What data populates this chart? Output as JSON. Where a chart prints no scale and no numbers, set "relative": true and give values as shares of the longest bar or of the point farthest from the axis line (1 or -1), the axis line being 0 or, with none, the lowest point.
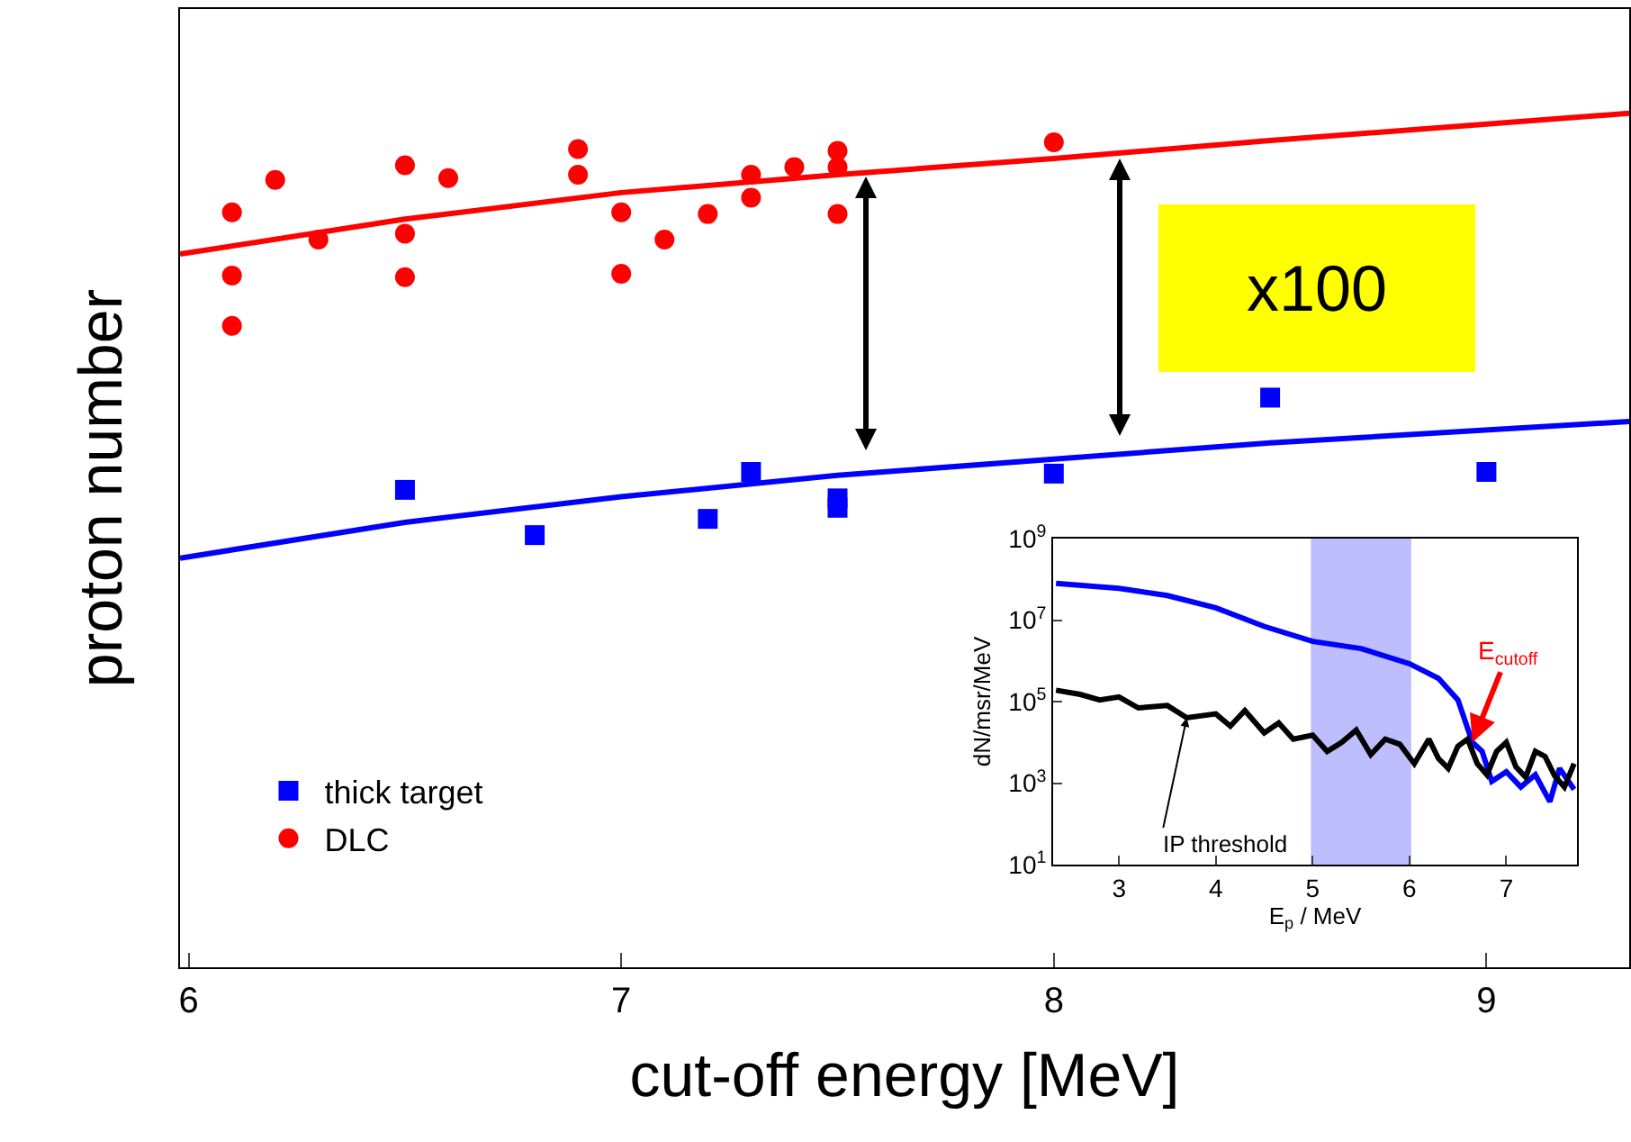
{
  "chart_data": [
    {
      "type": "scatter",
      "xlabel": "cut-off energy [MeV]",
      "ylabel": "proton number",
      "relative": true,
      "xlim": [
        5.98,
        9.33
      ],
      "xticks": [
        6,
        7,
        8,
        9
      ],
      "tick_labels": "x",
      "grid": false,
      "legend": "bottom left",
      "annotations": [
        "x100"
      ],
      "series": [
        {
          "name": "thick target",
          "color": "#0000ff",
          "marker": "square",
          "x": [
            6.5,
            6.8,
            7.2,
            7.3,
            7.5,
            7.5,
            8.0,
            8.5,
            9.0
          ],
          "values": [
            0.559,
            0.506,
            0.525,
            0.58,
            0.549,
            0.538,
            0.578,
            0.667,
            0.58
          ]
        },
        {
          "name": "DLC",
          "color": "#ff0000",
          "marker": "circle",
          "x": [
            6.1,
            6.1,
            6.1,
            6.2,
            6.3,
            6.5,
            6.5,
            6.5,
            6.6,
            6.9,
            6.9,
            7.0,
            7.0,
            7.1,
            7.2,
            7.3,
            7.3,
            7.4,
            7.5,
            7.5,
            7.5,
            8.0
          ],
          "values": [
            0.884,
            0.81,
            0.751,
            0.922,
            0.852,
            0.939,
            0.859,
            0.808,
            0.924,
            0.958,
            0.928,
            0.884,
            0.812,
            0.852,
            0.882,
            0.928,
            0.901,
            0.937,
            0.956,
            0.937,
            0.882,
            0.966
          ]
        },
        {
          "type": "line",
          "color": "#0000ff",
          "marker": "none",
          "x": [
            5.98,
            6.5,
            7.0,
            7.5,
            8.0,
            8.5,
            9.33
          ],
          "values": [
            0.479,
            0.521,
            0.551,
            0.576,
            0.595,
            0.614,
            0.639
          ]
        },
        {
          "type": "line",
          "color": "#ff0000",
          "marker": "none",
          "x": [
            5.98,
            6.5,
            7.0,
            7.5,
            8.0,
            8.5,
            9.33
          ],
          "values": [
            0.835,
            0.876,
            0.907,
            0.928,
            0.947,
            0.968,
            1
          ]
        }
      ]
    },
    {
      "type": "line",
      "xlabel": "E$_{p}$ / MeV",
      "ylabel": "dN/msr/MeV",
      "log": "y",
      "xlim": [
        2.32,
        7.73
      ],
      "xticks": [
        3,
        4,
        5,
        6,
        7
      ],
      "ylim": [
        10,
        1000000000
      ],
      "yticks": [
        {
          "value": 10,
          "label": "10$^{1}$"
        },
        {
          "value": 1000,
          "label": "10$^{3}$"
        },
        {
          "value": 100000,
          "label": "10$^{5}$"
        },
        {
          "value": 10000000,
          "label": "10$^{7}$"
        },
        {
          "value": 1000000000,
          "label": "10$^{9}$"
        }
      ],
      "grid": false,
      "legend": false,
      "marker": "none",
      "annotations": [
        {
          "text": "E$_{cutoff}$",
          "x": 6.65,
          "y": 10000
        },
        {
          "text": "IP threshold",
          "x": 3.7,
          "y": 40000
        }
      ],
      "bands": [
        {
          "axis": "x",
          "from": 5,
          "to": 6,
          "color": "#0000ff"
        }
      ],
      "series": [
        {
          "color": "#0000ff",
          "x": [
            2.35,
            3.0,
            3.5,
            4.0,
            4.5,
            5.0,
            5.5,
            6.0,
            6.3,
            6.5,
            6.65,
            6.75,
            6.85,
            7.0,
            7.15,
            7.3,
            7.45,
            7.55,
            7.7
          ],
          "values": [
            80000000,
            60000000,
            40000000,
            20000000,
            7000000,
            3000000,
            2000000,
            850000,
            370000,
            110000,
            10000,
            6000,
            1100,
            1900,
            800,
            1600,
            350,
            2300,
            700
          ]
        },
        {
          "color": "#000000",
          "x": [
            2.35,
            2.6,
            2.8,
            3.0,
            3.2,
            3.5,
            3.7,
            4.0,
            4.15,
            4.3,
            4.5,
            4.65,
            4.8,
            5.0,
            5.15,
            5.3,
            5.45,
            5.6,
            5.75,
            5.9,
            6.05,
            6.2,
            6.3,
            6.4,
            6.5,
            6.6,
            6.7,
            6.8,
            6.9,
            7.0,
            7.1,
            7.2,
            7.3,
            7.4,
            7.5,
            7.6,
            7.7
          ],
          "values": [
            190000,
            150000,
            110000,
            130000,
            70000,
            80000,
            40000,
            50000,
            25000,
            60000,
            17000,
            30000,
            12000,
            15000,
            6000,
            10000,
            20000,
            5000,
            12000,
            9000,
            3000,
            12000,
            4000,
            2300,
            8000,
            12000,
            3000,
            1600,
            6000,
            10000,
            2500,
            1400,
            6000,
            4500,
            1500,
            800,
            3000
          ]
        }
      ]
    }
  ]
}
